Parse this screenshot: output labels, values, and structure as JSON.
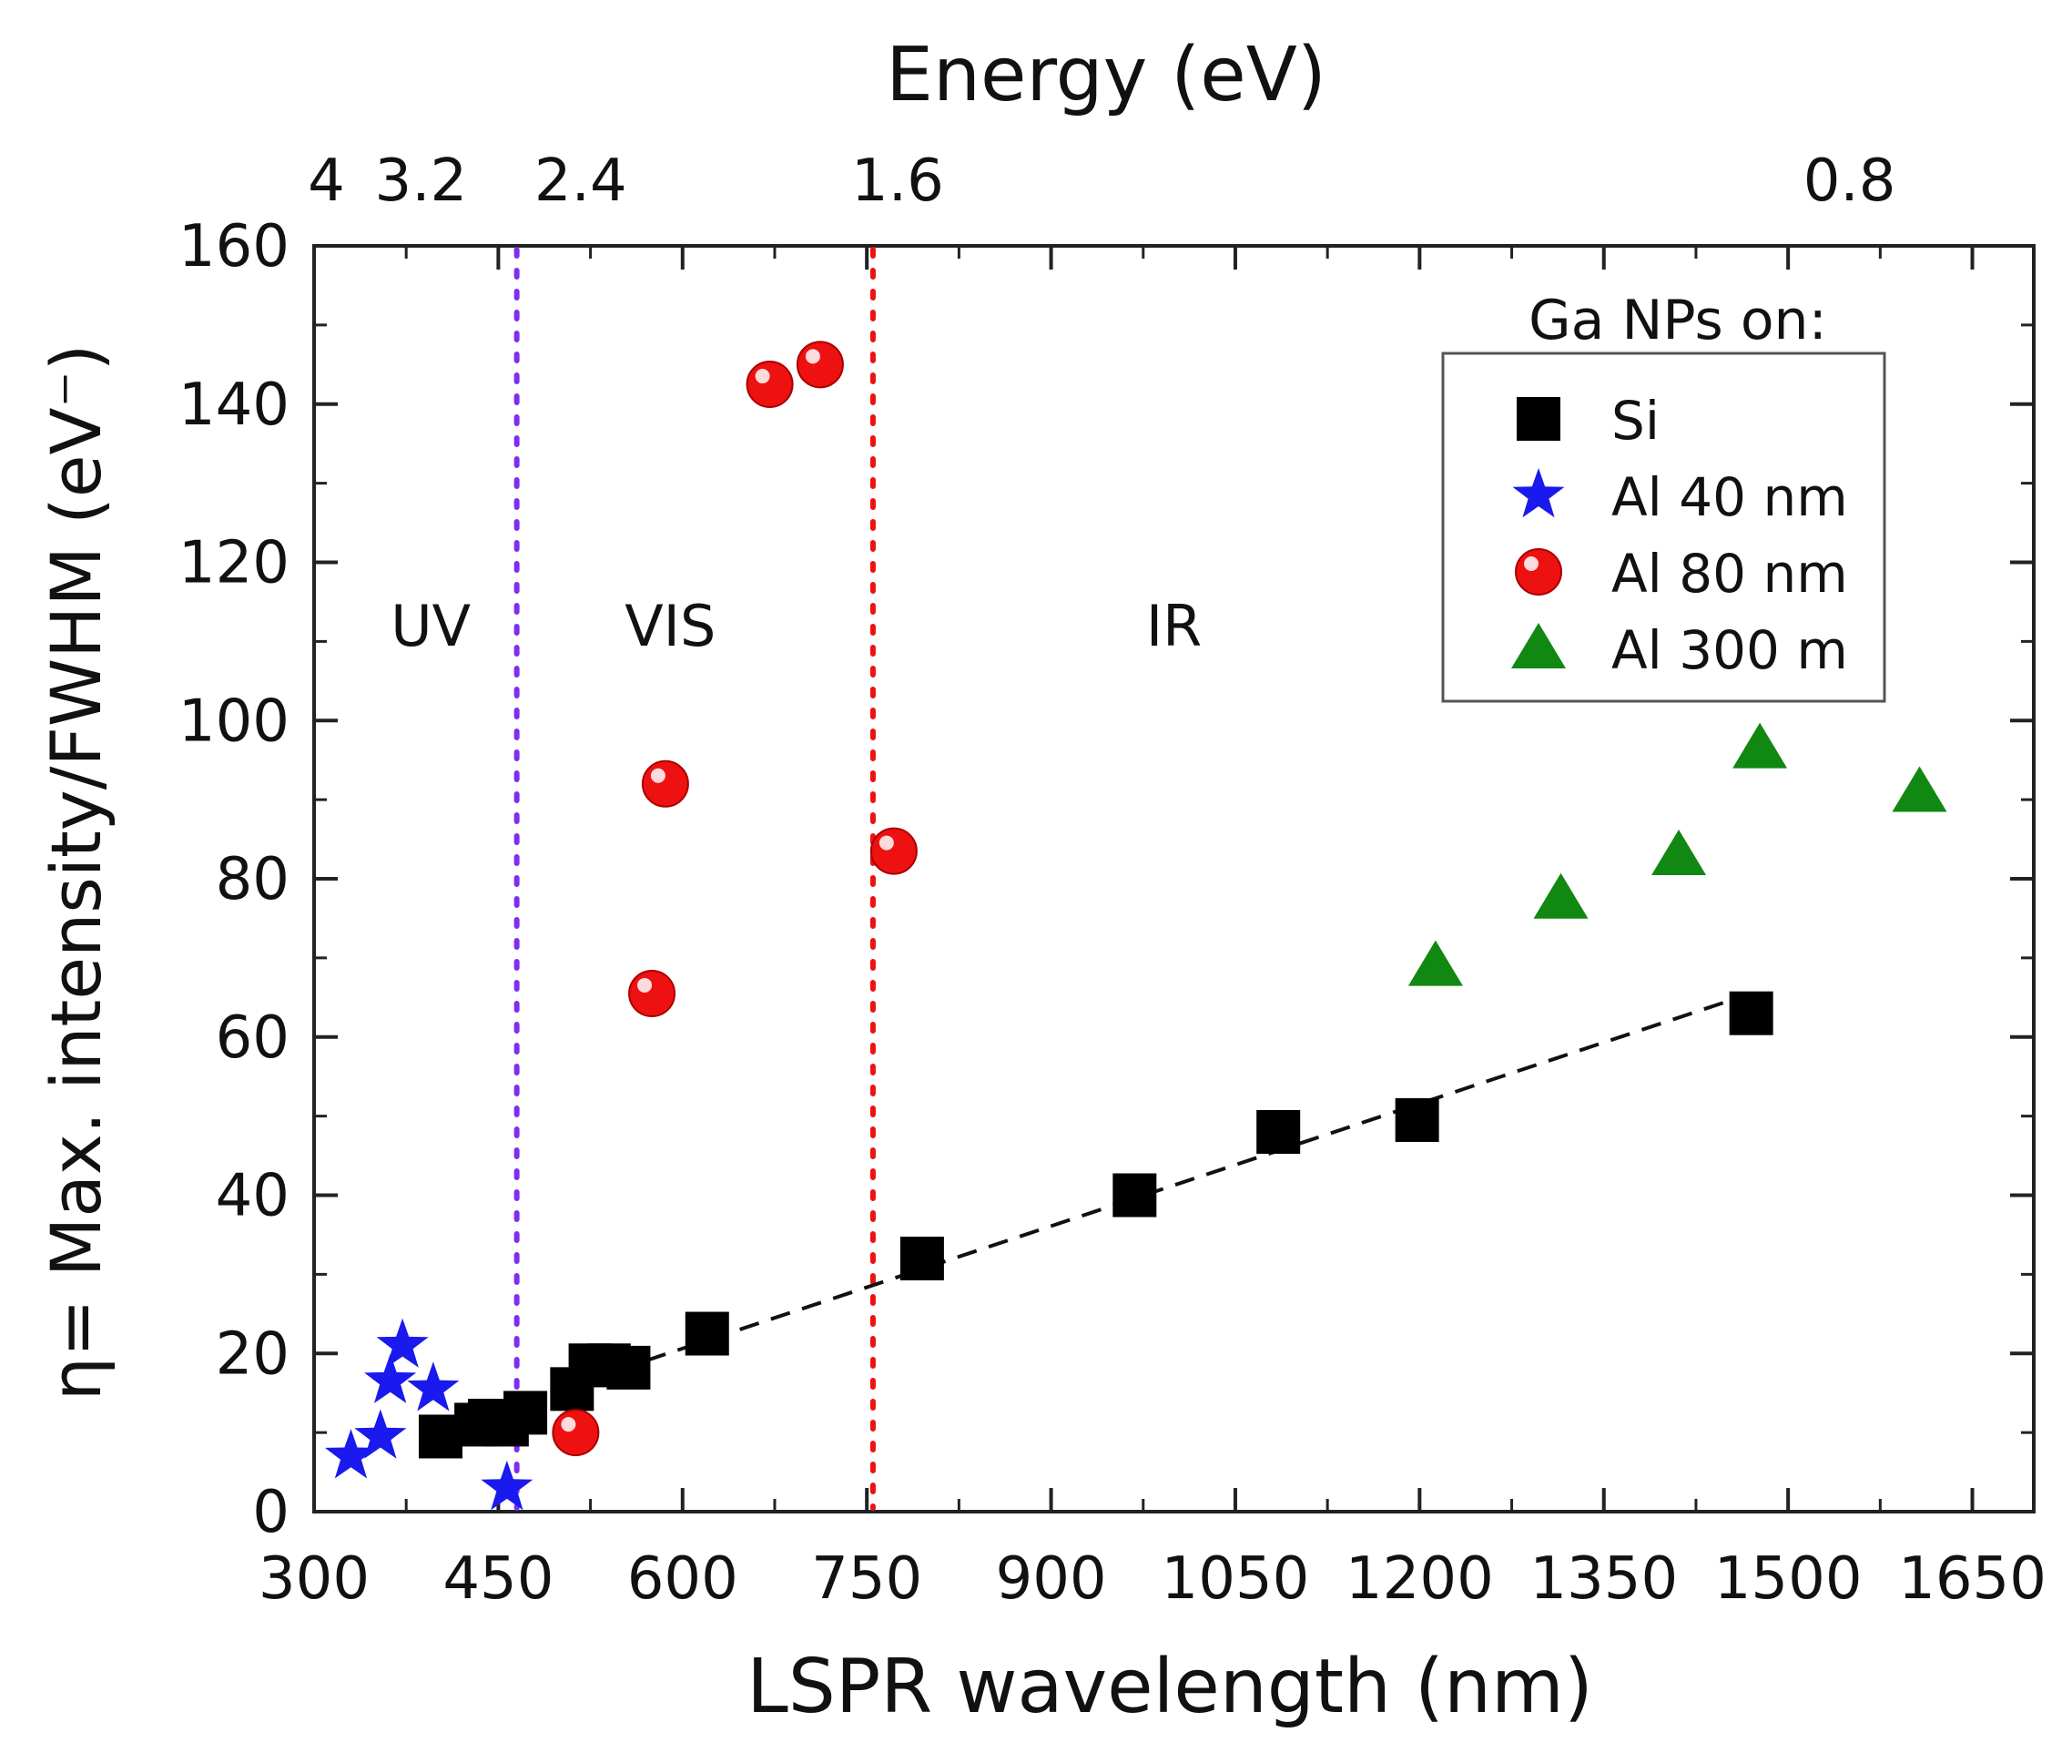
{
  "chart_data": {
    "type": "scatter",
    "title": "",
    "xlabel": "LSPR wavelength (nm)",
    "ylabel": "η= Max. intensity/FWHM (eV⁻)",
    "top_xlabel": "Energy (eV)",
    "xlim": [
      300,
      1700
    ],
    "ylim": [
      0,
      160
    ],
    "x_ticks": [
      300,
      450,
      600,
      750,
      900,
      1050,
      1200,
      1350,
      1500,
      1650
    ],
    "y_ticks": [
      0,
      20,
      40,
      60,
      80,
      100,
      120,
      140,
      160
    ],
    "top_ticks": [
      {
        "label": "4",
        "wavelength": 310
      },
      {
        "label": "3.2",
        "wavelength": 387
      },
      {
        "label": "2.4",
        "wavelength": 517
      },
      {
        "label": "1.6",
        "wavelength": 775
      },
      {
        "label": "0.8",
        "wavelength": 1550
      }
    ],
    "vlines": [
      {
        "x": 465,
        "color": "#7f2ef0"
      },
      {
        "x": 755,
        "color": "#ee1111"
      }
    ],
    "regions": [
      {
        "label": "UV",
        "x": 395,
        "y": 112
      },
      {
        "label": "VIS",
        "x": 590,
        "y": 112
      },
      {
        "label": "IR",
        "x": 1000,
        "y": 112
      }
    ],
    "legend_title": "Ga NPs on:",
    "legend_position": "top-right",
    "series": [
      {
        "name": "Si",
        "marker": "square",
        "color": "#000000",
        "points": [
          [
            403,
            9.5
          ],
          [
            432,
            11
          ],
          [
            443,
            11.5
          ],
          [
            457,
            11
          ],
          [
            472,
            12.5
          ],
          [
            510,
            15.5
          ],
          [
            525,
            18.5
          ],
          [
            540,
            18.5
          ],
          [
            556,
            18.2
          ],
          [
            620,
            22.5
          ],
          [
            795,
            32
          ],
          [
            968,
            40
          ],
          [
            1085,
            48
          ],
          [
            1198,
            49.5
          ],
          [
            1470,
            63
          ]
        ]
      },
      {
        "name": "Al 40 nm",
        "marker": "star",
        "color": "#1a1aee",
        "points": [
          [
            330,
            7
          ],
          [
            354,
            9.5
          ],
          [
            362,
            16.5
          ],
          [
            372,
            21
          ],
          [
            397,
            15.5
          ],
          [
            457,
            3
          ]
        ]
      },
      {
        "name": "Al 80 nm",
        "marker": "circle",
        "color": "#ee1111",
        "points": [
          [
            513,
            10
          ],
          [
            575,
            65.5
          ],
          [
            586,
            92
          ],
          [
            671,
            142.5
          ],
          [
            712,
            145
          ],
          [
            772,
            83.5
          ]
        ]
      },
      {
        "name": "Al 300 m",
        "marker": "triangle",
        "color": "#118811",
        "points": [
          [
            1213,
            69
          ],
          [
            1315,
            77.5
          ],
          [
            1411,
            83
          ],
          [
            1477,
            96.5
          ],
          [
            1607,
            91
          ]
        ]
      }
    ],
    "fit_line": {
      "style": "dashed",
      "color": "#111111",
      "x": [
        520,
        1470
      ],
      "y": [
        16.5,
        65.5
      ]
    }
  }
}
